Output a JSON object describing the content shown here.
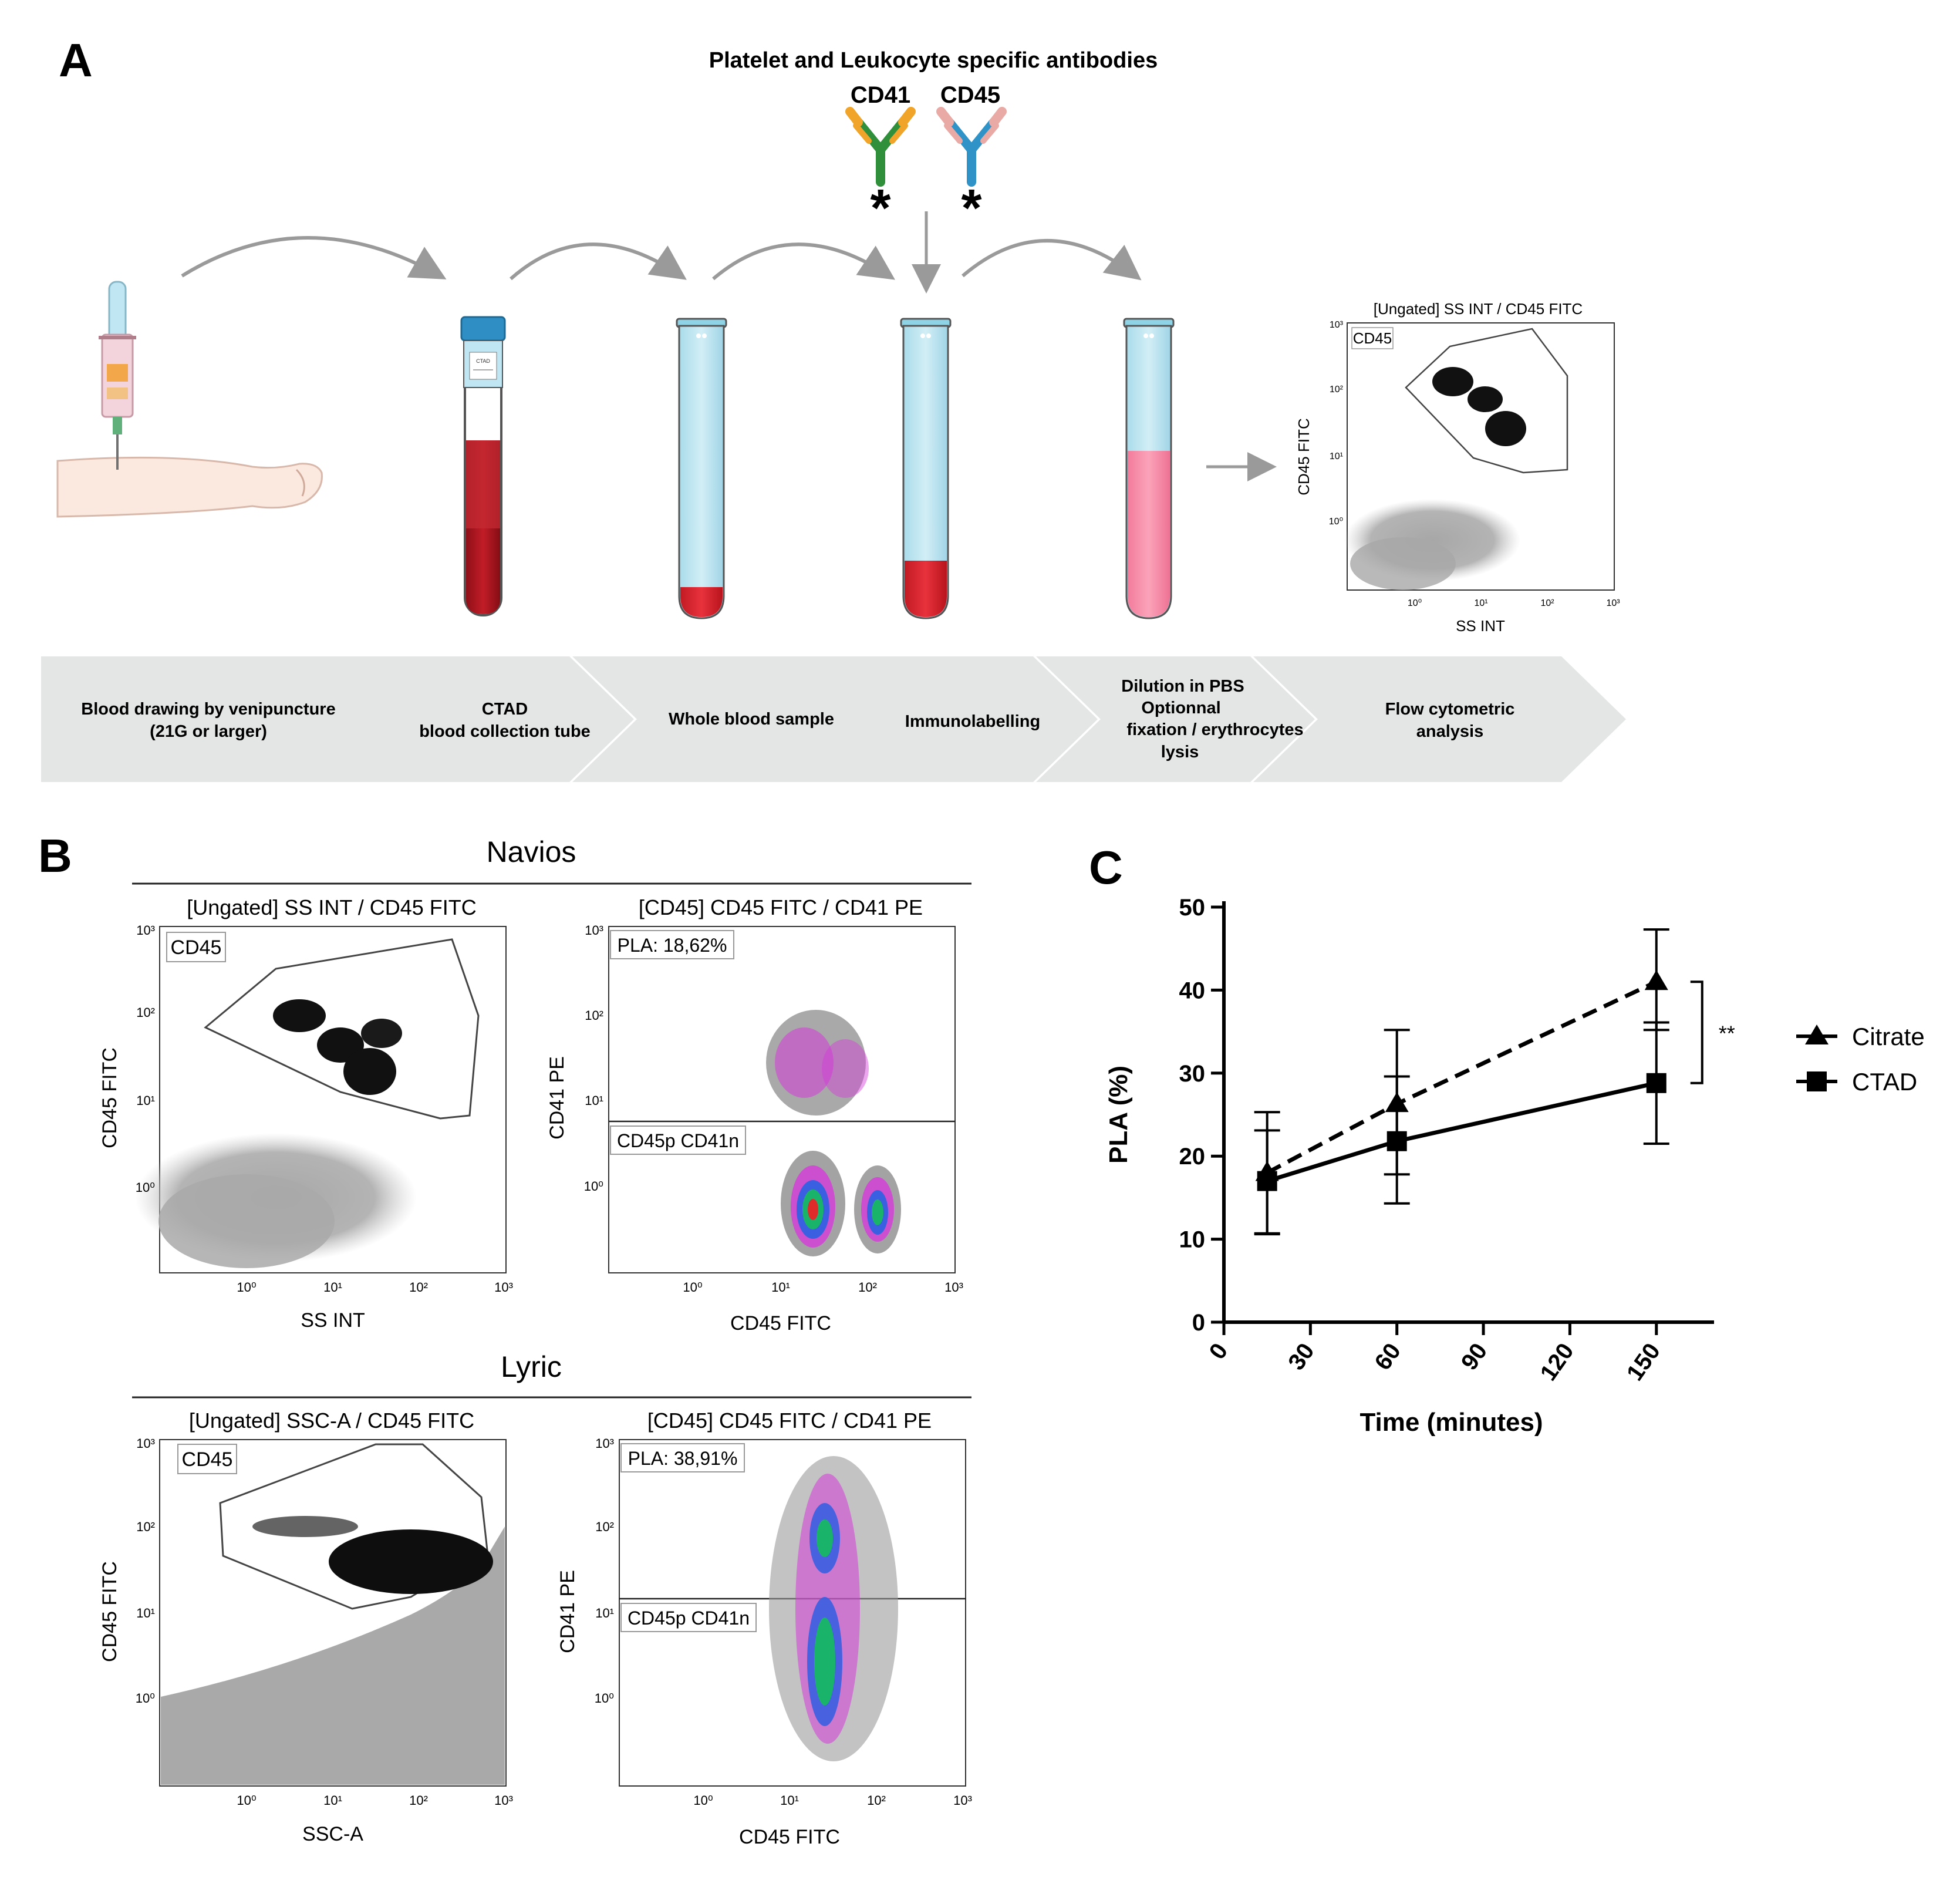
{
  "panel_labels": {
    "a": "A",
    "b": "B",
    "c": "C"
  },
  "antibodies": {
    "title": "Platelet and Leukocyte specific antibodies",
    "cd41": "CD41",
    "cd45": "CD45"
  },
  "steps": [
    {
      "line1": "Blood drawing by venipuncture",
      "line2": "(21G or larger)"
    },
    {
      "line1": "CTAD",
      "line2": "blood collection tube"
    },
    {
      "line1": "Whole blood sample"
    },
    {
      "line1": "Immunolabelling"
    },
    {
      "line1": "Dilution in PBS",
      "line2": "Optionnal",
      "line3": "fixation / erythrocytes",
      "line4": "lysis"
    },
    {
      "line1": "Flow cytometric",
      "line2": "analysis"
    }
  ],
  "tube_labels": {
    "ctad_cap": "CTAD"
  },
  "mini_plot": {
    "title": "[Ungated] SS INT / CD45 FITC",
    "gate": "CD45",
    "xlabel": "SS INT",
    "ylabel": "CD45 FITC",
    "ticks": {
      "d0": "10⁰",
      "d1": "10¹",
      "d2": "10²",
      "d3": "10³"
    }
  },
  "navios": {
    "header": "Navios",
    "left": {
      "title": "[Ungated] SS INT / CD45 FITC",
      "gate": "CD45",
      "xlabel": "SS INT",
      "ylabel": "CD45 FITC"
    },
    "right": {
      "title": "[CD45] CD45 FITC / CD41 PE",
      "gate_top": "PLA: 18,62%",
      "gate_bottom": "CD45p CD41n",
      "xlabel": "CD45 FITC",
      "ylabel": "CD41 PE"
    }
  },
  "lyric": {
    "header": "Lyric",
    "left": {
      "title": "[Ungated] SSC-A / CD45 FITC",
      "gate": "CD45",
      "xlabel": "SSC-A",
      "ylabel": "CD45 FITC"
    },
    "right": {
      "title": "[CD45] CD45 FITC / CD41 PE",
      "gate_top": "PLA: 38,91%",
      "gate_bottom": "CD45p CD41n",
      "xlabel": "CD45 FITC",
      "ylabel": "CD41 PE"
    }
  },
  "log_ticks": {
    "d0": "10⁰",
    "d1": "10¹",
    "d2": "10²",
    "d3": "10³"
  },
  "chart_data": {
    "type": "line",
    "title": "",
    "xlabel": "Time (minutes)",
    "ylabel": "PLA (%)",
    "xlim": [
      0,
      170
    ],
    "ylim": [
      0,
      50
    ],
    "x_ticks": [
      0,
      30,
      60,
      90,
      120,
      150
    ],
    "y_ticks": [
      0,
      10,
      20,
      30,
      40,
      50
    ],
    "x_tick_labels": [
      "0",
      "30",
      "60",
      "90",
      "120",
      "150"
    ],
    "y_tick_labels": [
      "0",
      "10",
      "20",
      "30",
      "40",
      "50"
    ],
    "series": [
      {
        "name": "Citrate",
        "marker": "triangle",
        "dash": true,
        "x": [
          15,
          60,
          150
        ],
        "y": [
          18,
          26.3,
          41
        ],
        "err_low": [
          10.6,
          17.8,
          35.2
        ],
        "err_high": [
          25.3,
          35.2,
          47.3
        ]
      },
      {
        "name": "CTAD",
        "marker": "square",
        "dash": false,
        "x": [
          15,
          60,
          150
        ],
        "y": [
          17,
          21.8,
          28.8
        ],
        "err_low": [
          10.7,
          14.3,
          21.5
        ],
        "err_high": [
          23.1,
          29.6,
          36.1
        ]
      }
    ],
    "significance": "**",
    "legend": "right"
  }
}
